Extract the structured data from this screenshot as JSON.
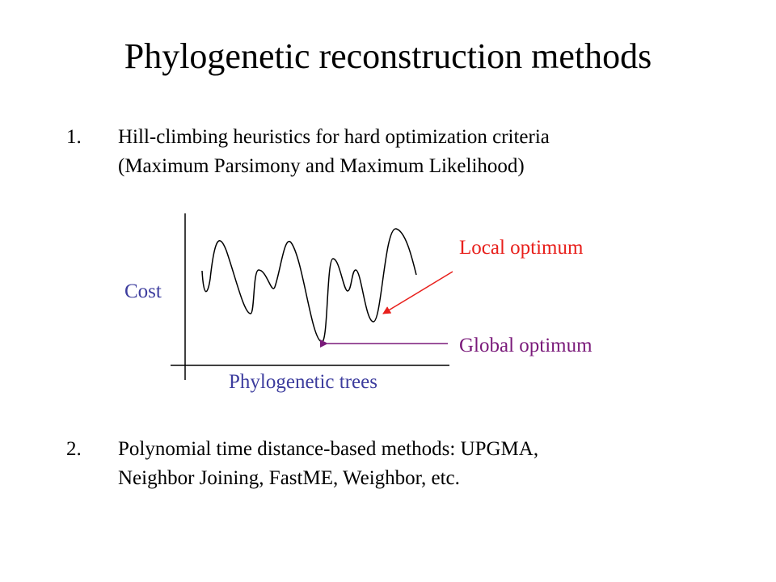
{
  "slide": {
    "title": "Phylogenetic reconstruction methods",
    "items": [
      {
        "number": "1.",
        "lines": [
          "Hill-climbing heuristics for hard optimization criteria",
          "(Maximum Parsimony and Maximum Likelihood)"
        ]
      },
      {
        "number": "2.",
        "lines": [
          "Polynomial time distance-based methods: UPGMA,",
          "Neighbor Joining, FastME, Weighbor, etc."
        ]
      }
    ]
  },
  "diagram": {
    "y_axis_label": "Cost",
    "x_axis_label": "Phylogenetic trees",
    "local_optimum_label": "Local optimum",
    "global_optimum_label": "Global optimum",
    "colors": {
      "axis_labels": "#3d3d9e",
      "local_optimum": "#e8201c",
      "global_optimum": "#7a1a7a",
      "curve": "#000000"
    }
  }
}
